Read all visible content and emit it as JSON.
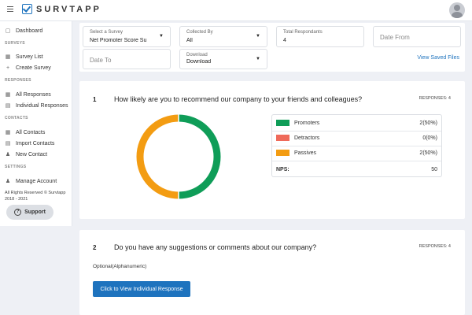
{
  "app": {
    "logo_text": "SURVTAPP"
  },
  "sidebar": {
    "dashboard": "Dashboard",
    "sections": [
      {
        "heading": "SURVEYS",
        "items": [
          "Survey List",
          "Create Survey"
        ]
      },
      {
        "heading": "RESPONSES",
        "items": [
          "All Responses",
          "Individual Responses"
        ]
      },
      {
        "heading": "CONTACTS",
        "items": [
          "All Contacts",
          "Import Contacts",
          "New Contact"
        ]
      },
      {
        "heading": "SETTINGS",
        "items": [
          "Manage Account"
        ]
      }
    ],
    "footer_line1": "All Rights Reserved © Survtapp",
    "footer_line2": "2018 - 2021",
    "support_label": "Support"
  },
  "filters": {
    "survey_label": "Select a Survey",
    "survey_value": "Net Promoter Score Su",
    "collected_label": "Collected By",
    "collected_value": "All",
    "total_label": "Total Respondants",
    "total_value": "4",
    "date_from_placeholder": "Date From",
    "date_to_placeholder": "Date To",
    "download_label": "Download",
    "download_value": "Download",
    "saved_files_link": "View Saved Files"
  },
  "question1": {
    "number": "1",
    "text": "How likely are you to recommend our company to your friends and colleagues?",
    "responses": "RESPONSES: 4",
    "legend": [
      {
        "name": "Promoters",
        "value": "2(50%)",
        "color": "#0f9d58"
      },
      {
        "name": "Detractors",
        "value": "0(0%)",
        "color": "#ef6a5a"
      },
      {
        "name": "Passives",
        "value": "2(50%)",
        "color": "#f39c12"
      }
    ],
    "nps_label": "NPS:",
    "nps_value": "50"
  },
  "question2": {
    "number": "2",
    "text": "Do you have any suggestions or comments about our company?",
    "responses": "RESPONSES: 4",
    "optional_text": "Optional(Alphanumeric)",
    "view_button": "Click to View Individual Response"
  },
  "chart_data": {
    "type": "pie",
    "categories": [
      "Promoters",
      "Detractors",
      "Passives"
    ],
    "values": [
      2,
      0,
      2
    ],
    "colors": [
      "#0f9d58",
      "#ef6a5a",
      "#f39c12"
    ]
  }
}
